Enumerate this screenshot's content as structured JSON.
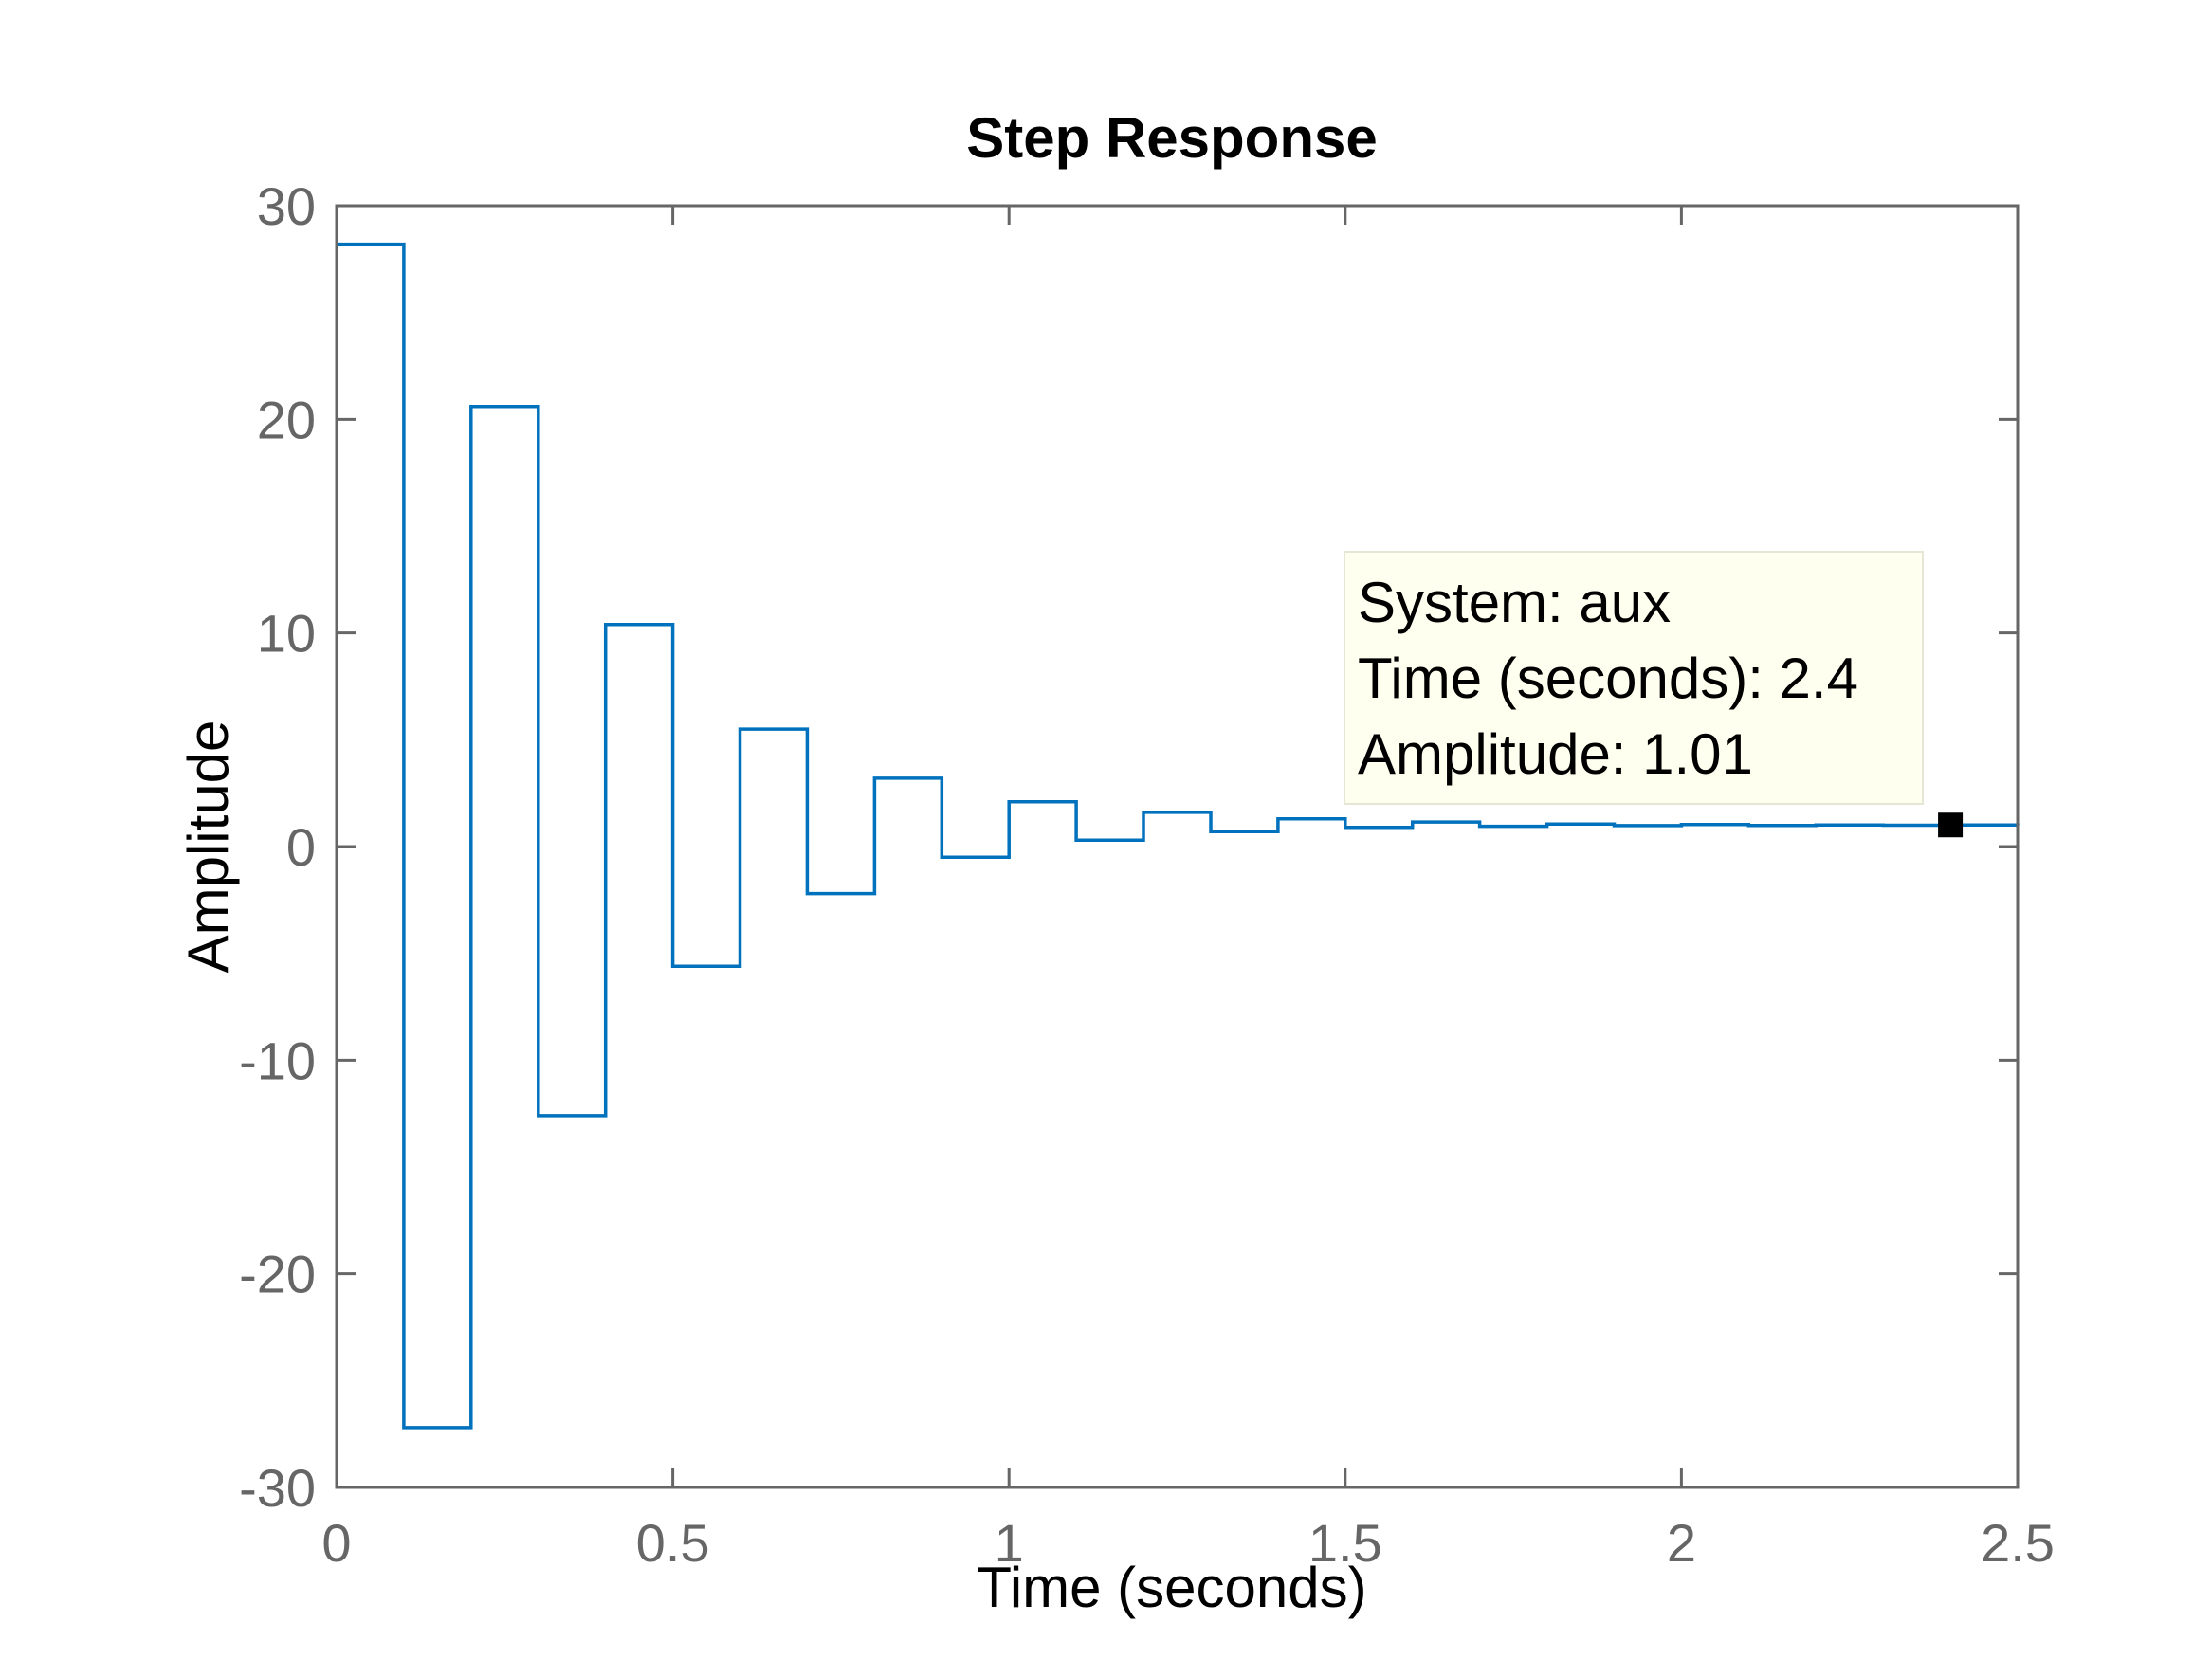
{
  "chart_data": {
    "type": "line",
    "line_style": "stairs",
    "title": "Step Response",
    "xlabel": "Time (seconds)",
    "ylabel": "Amplitude",
    "xlim": [
      0,
      2.5
    ],
    "ylim": [
      -30,
      30
    ],
    "xticks": [
      0,
      0.5,
      1,
      1.5,
      2,
      2.5
    ],
    "xtick_labels": [
      "0",
      "0.5",
      "1",
      "1.5",
      "2",
      "2.5"
    ],
    "yticks": [
      -30,
      -20,
      -10,
      0,
      10,
      20,
      30
    ],
    "ytick_labels": [
      "-30",
      "-20",
      "-10",
      "0",
      "10",
      "20",
      "30"
    ],
    "grid": false,
    "colors": {
      "series": "#0072BD",
      "axis": "#666666",
      "datatip_bg": "#FFFFF0"
    },
    "series": [
      {
        "x": [
          0,
          0.1,
          0.2,
          0.3,
          0.4,
          0.5,
          0.6,
          0.7,
          0.8,
          0.9,
          1.0,
          1.1,
          1.2,
          1.3,
          1.4,
          1.5,
          1.6,
          1.7,
          1.8,
          1.9,
          2.0,
          2.1,
          2.2,
          2.3,
          2.4,
          2.5
        ],
        "y": [
          28.2,
          -27.2,
          20.6,
          -12.6,
          10.4,
          -5.6,
          5.5,
          -2.2,
          3.2,
          -0.5,
          2.1,
          0.3,
          1.6,
          0.7,
          1.3,
          0.9,
          1.15,
          0.95,
          1.05,
          0.98,
          1.03,
          0.99,
          1.01,
          1.0,
          1.01,
          1.0
        ]
      }
    ],
    "datatip": {
      "x": 2.4,
      "y": 1.01,
      "lines": [
        "System: aux",
        "Time (seconds): 2.4",
        "Amplitude: 1.01"
      ]
    }
  }
}
